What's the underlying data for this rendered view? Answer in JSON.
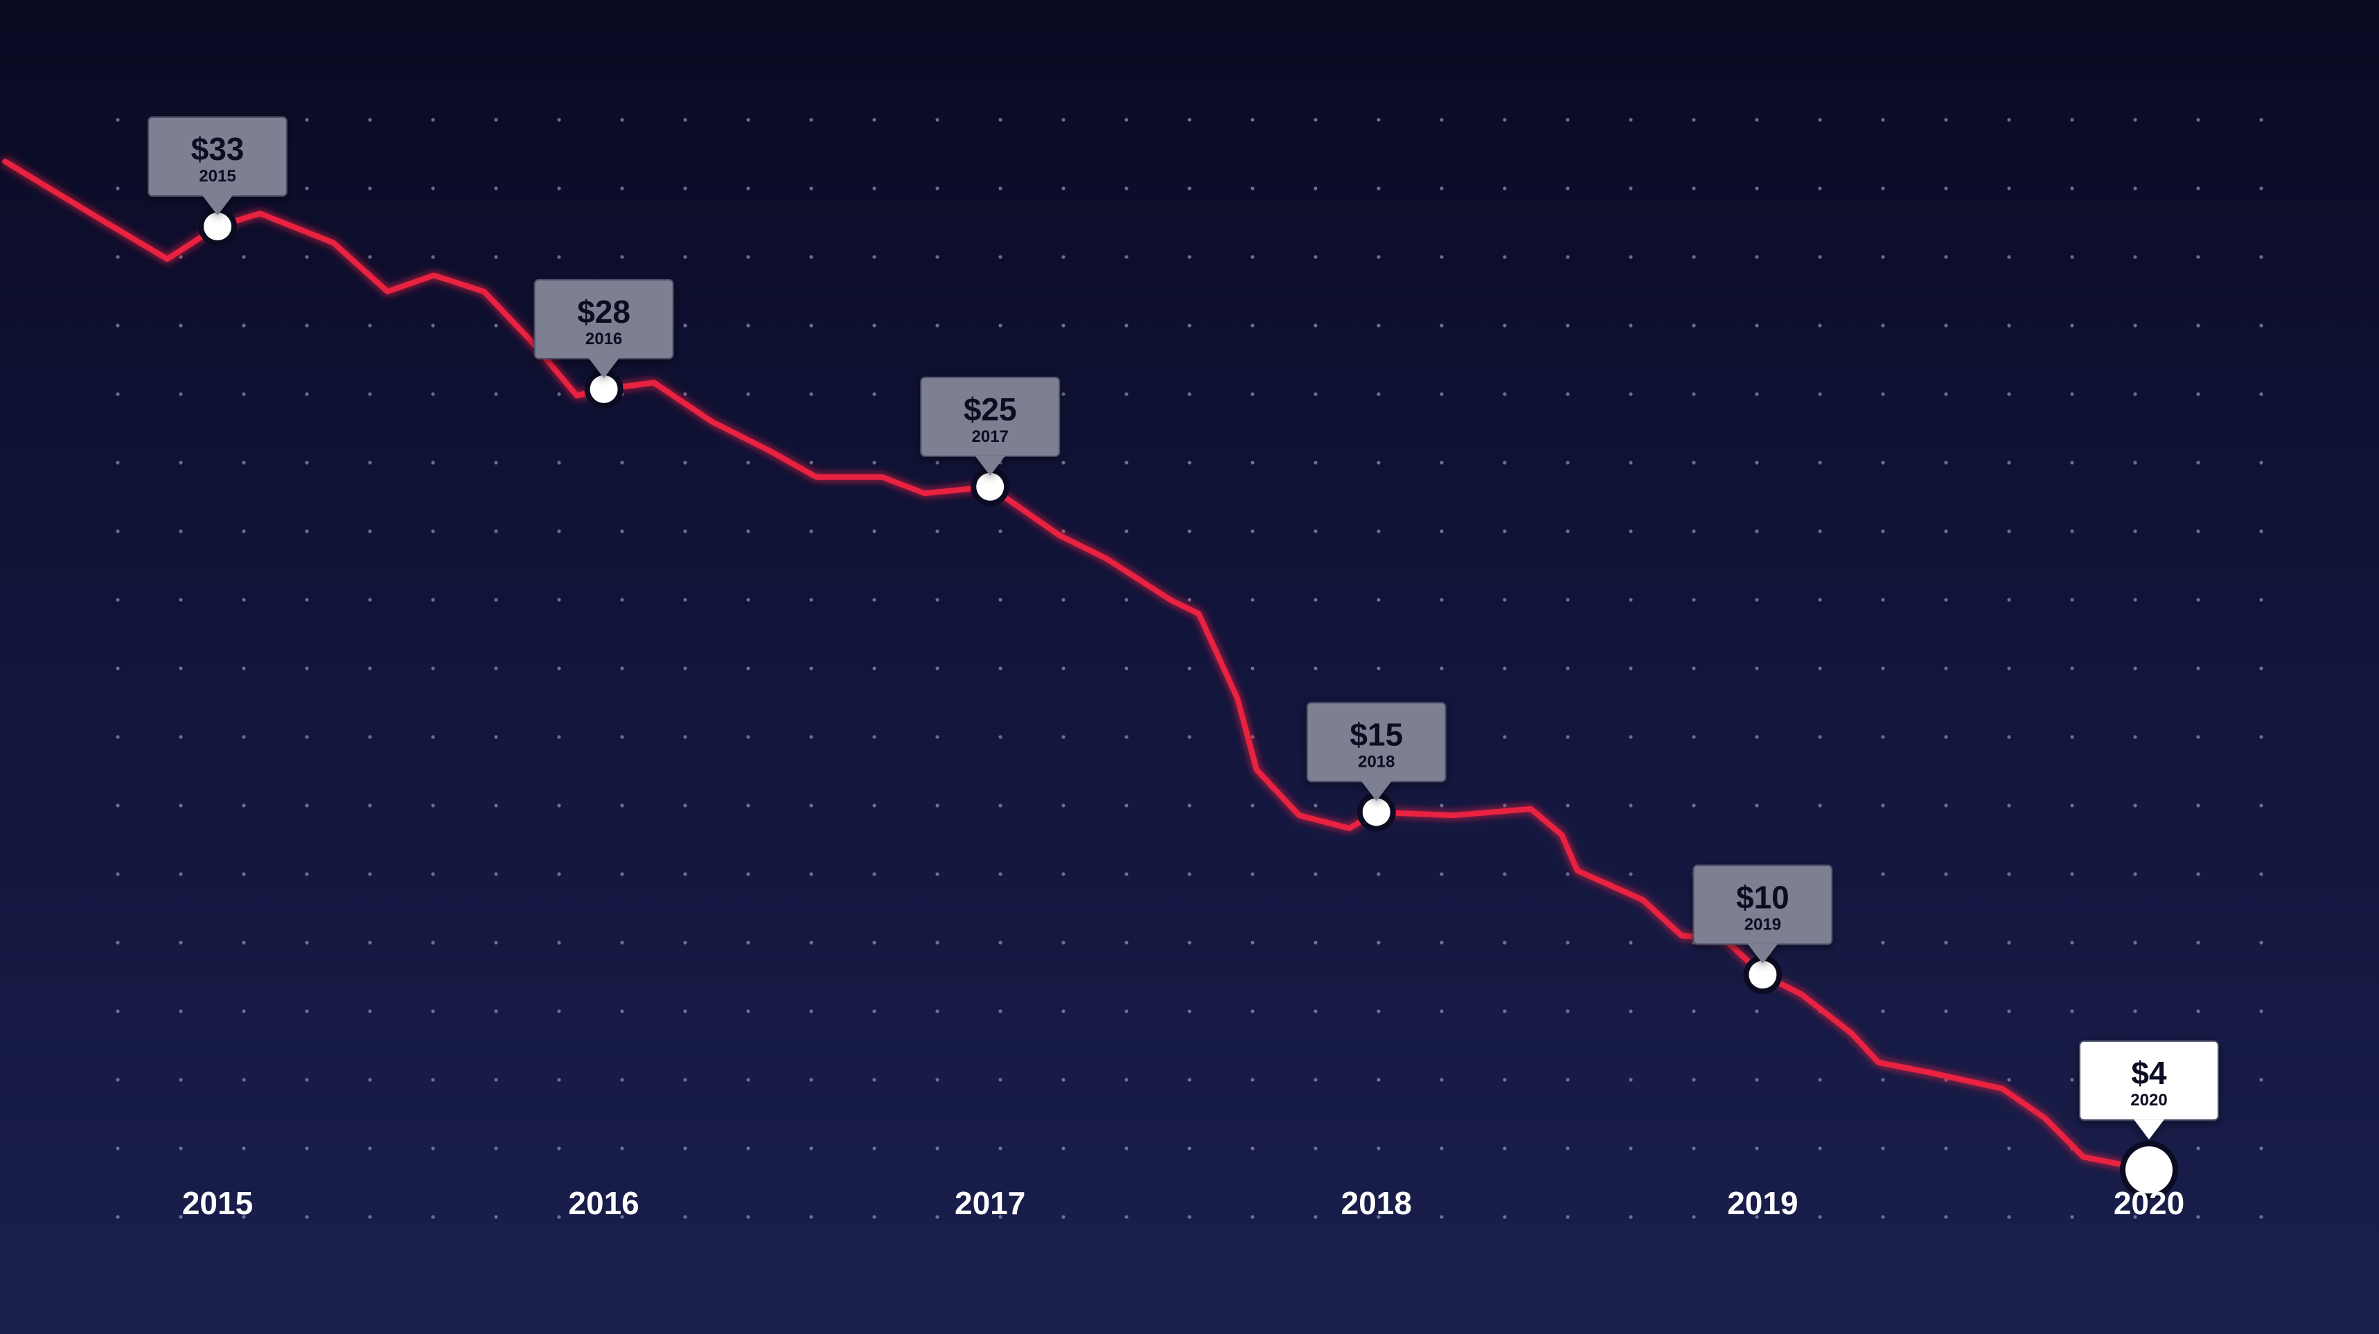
{
  "colors": {
    "line": "#e8213f",
    "grid_dot": "#8a8fb0",
    "marker": "#ffffff",
    "tooltip_bg": "#7d7f92",
    "tooltip_bg_last": "#ffffff",
    "text": "#ffffff"
  },
  "chart_data": {
    "type": "line",
    "title": "",
    "xlabel": "",
    "ylabel": "",
    "grid": "dotted",
    "legend": "none",
    "x_ticks": [
      "2015",
      "2016",
      "2017",
      "2018",
      "2019",
      "2020"
    ],
    "xlim": [
      2014.45,
      2020
    ],
    "ylim": [
      0,
      39.5
    ],
    "series": [
      {
        "x": [
          2014.45,
          2014.7,
          2014.87,
          2015.0,
          2015.11,
          2015.3,
          2015.44,
          2015.56,
          2015.69,
          2015.81,
          2015.93,
          2016.0,
          2016.13,
          2016.28,
          2016.43,
          2016.55,
          2016.72,
          2016.83,
          2017.0,
          2017.18,
          2017.3,
          2017.47,
          2017.54,
          2017.64,
          2017.69,
          2017.8,
          2017.93,
          2018.0,
          2018.2,
          2018.4,
          2018.48,
          2018.52,
          2018.69,
          2018.79,
          2018.9,
          2019.0,
          2019.1,
          2019.23,
          2019.3,
          2019.43,
          2019.62,
          2019.73,
          2019.83,
          2020.0
        ],
        "y": [
          35,
          33.2,
          32.0,
          33.0,
          33.4,
          32.5,
          31.0,
          31.5,
          31.0,
          29.5,
          27.8,
          28.0,
          28.2,
          27.0,
          26.1,
          25.3,
          25.3,
          24.8,
          25.0,
          23.5,
          22.8,
          21.5,
          21.1,
          18.5,
          16.3,
          14.9,
          14.5,
          15.0,
          14.9,
          15.1,
          14.3,
          13.2,
          12.3,
          11.2,
          11.1,
          10.0,
          9.4,
          8.2,
          7.3,
          7.0,
          6.5,
          5.6,
          4.4,
          4.0
        ]
      }
    ],
    "highlights": [
      {
        "x": 2015,
        "y": 33,
        "value": "$33",
        "year": "2015"
      },
      {
        "x": 2016,
        "y": 28,
        "value": "$28",
        "year": "2016"
      },
      {
        "x": 2017,
        "y": 25,
        "value": "$25",
        "year": "2017"
      },
      {
        "x": 2018,
        "y": 15,
        "value": "$15",
        "year": "2018"
      },
      {
        "x": 2019,
        "y": 10,
        "value": "$10",
        "year": "2019"
      },
      {
        "x": 2020,
        "y": 4,
        "value": "$4",
        "year": "2020"
      }
    ]
  }
}
